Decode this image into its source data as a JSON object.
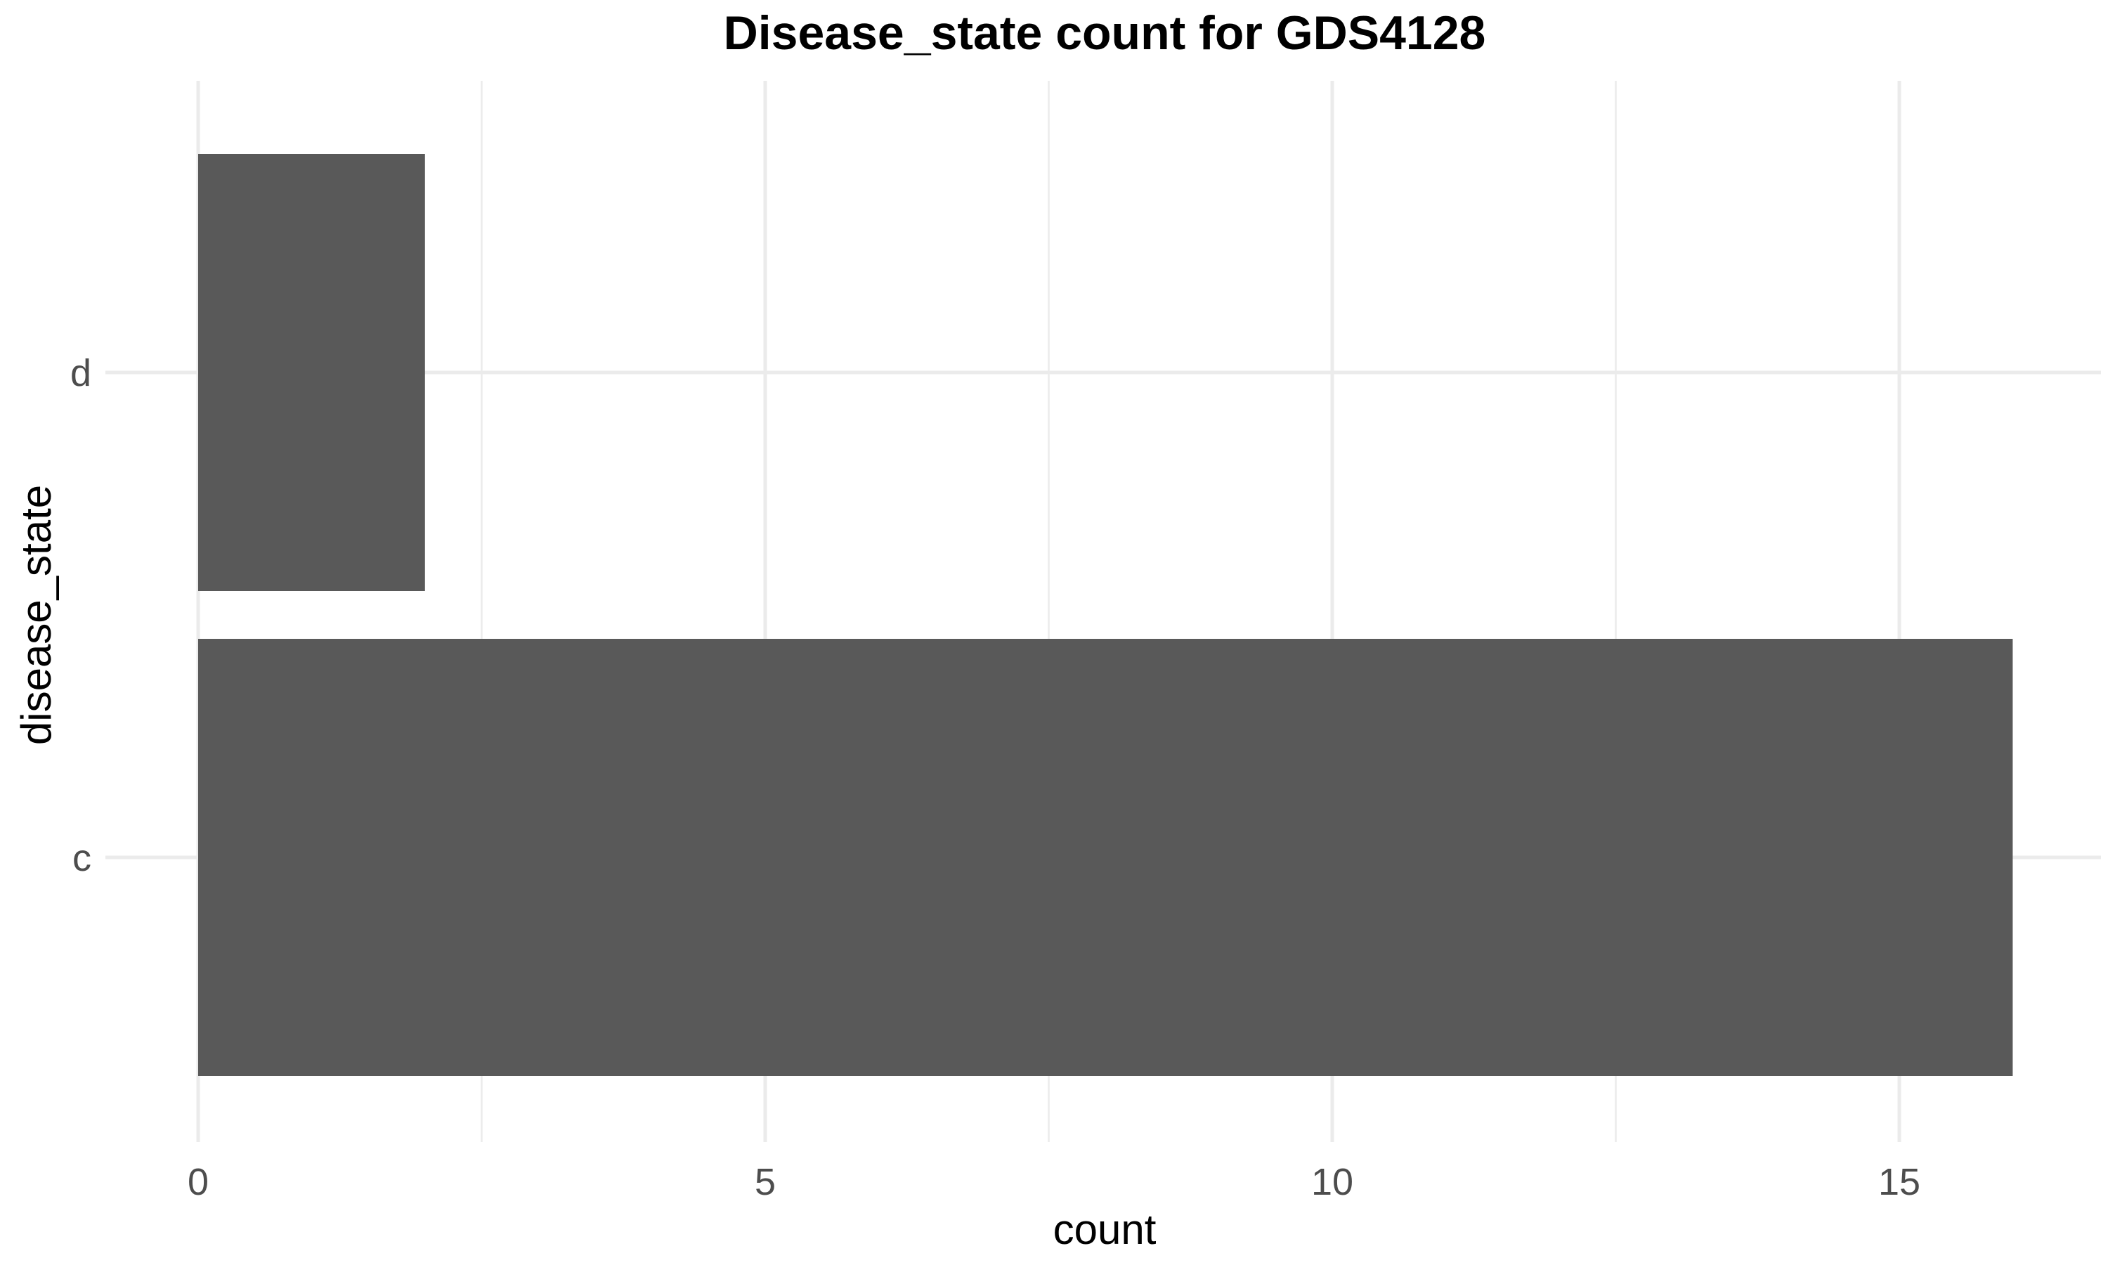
{
  "chart_data": {
    "type": "bar",
    "orientation": "horizontal",
    "title": "Disease_state count for GDS4128",
    "xlabel": "count",
    "ylabel": "disease_state",
    "categories": [
      "c",
      "d"
    ],
    "values": [
      16,
      2
    ],
    "xlim": [
      0,
      16.8
    ],
    "x_ticks": [
      0,
      5,
      10,
      15
    ],
    "x_minor_ticks": [
      2.5,
      7.5,
      12.5
    ],
    "grid": true,
    "legend": "none",
    "bar_color": "#595959",
    "grid_color": "#ebebeb"
  }
}
